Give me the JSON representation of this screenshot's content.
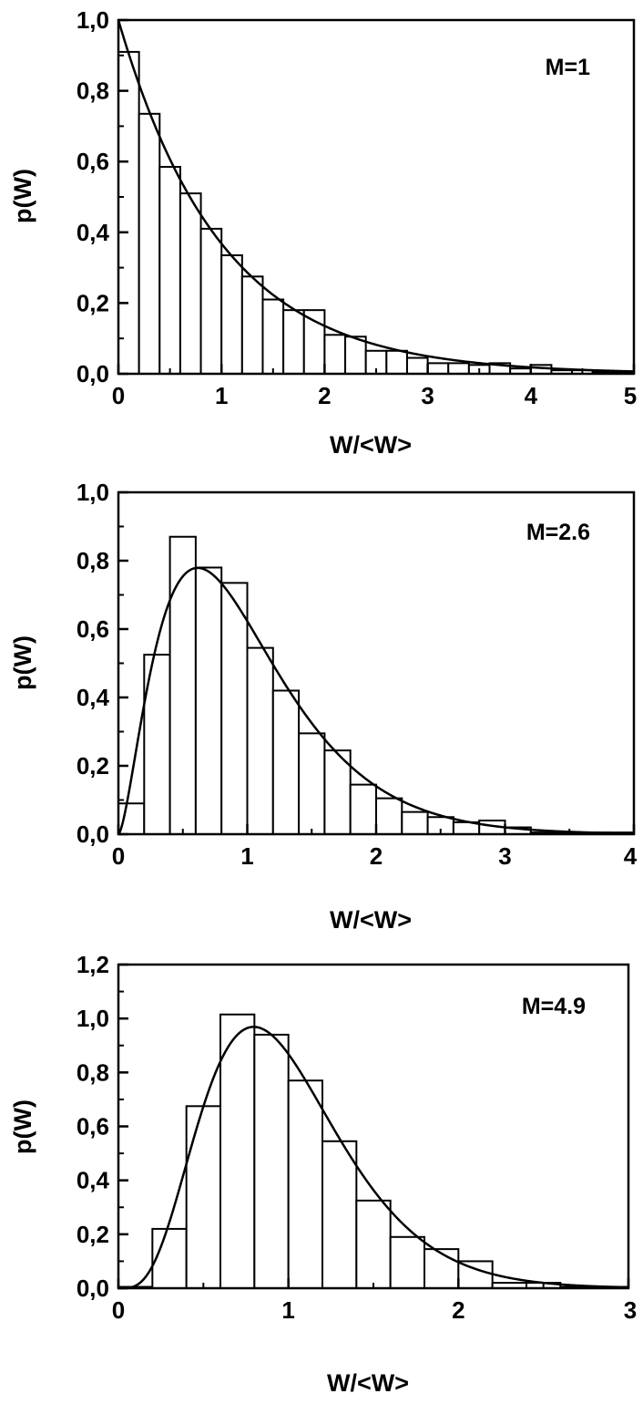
{
  "figure": {
    "colors": {
      "stroke": "#000000",
      "bar_fill": "#ffffff",
      "background": "#ffffff"
    }
  },
  "chart_data": [
    {
      "type": "bar",
      "annotation": "M=1",
      "xlabel": "W/<W>",
      "ylabel": "p(W)",
      "xlim": [
        0,
        5
      ],
      "ylim": [
        0,
        1.0
      ],
      "xticks": [
        0,
        1,
        2,
        3,
        4,
        5
      ],
      "xtick_labels": [
        "0",
        "1",
        "2",
        "3",
        "4",
        "5"
      ],
      "yticks": [
        0,
        0.2,
        0.4,
        0.6,
        0.8,
        1.0
      ],
      "ytick_labels": [
        "0,0",
        "0,2",
        "0,4",
        "0,6",
        "0,8",
        "1,0"
      ],
      "minor_x_step": 0.5,
      "minor_y_step": 0.1,
      "bin_width": 0.2,
      "bin_start": 0,
      "values": [
        0.91,
        0.735,
        0.585,
        0.51,
        0.41,
        0.335,
        0.275,
        0.21,
        0.18,
        0.18,
        0.11,
        0.105,
        0.065,
        0.065,
        0.045,
        0.03,
        0.03,
        0.025,
        0.03,
        0.015,
        0.025,
        0.01,
        0.01,
        0.005,
        0.005
      ],
      "curve": {
        "model": "gamma",
        "M": 1
      },
      "grid": false,
      "legend": "none"
    },
    {
      "type": "bar",
      "annotation": "M=2.6",
      "xlabel": "W/<W>",
      "ylabel": "p(W)",
      "xlim": [
        0,
        4
      ],
      "ylim": [
        0,
        1.0
      ],
      "xticks": [
        0,
        1,
        2,
        3,
        4
      ],
      "xtick_labels": [
        "0",
        "1",
        "2",
        "3",
        "4"
      ],
      "yticks": [
        0,
        0.2,
        0.4,
        0.6,
        0.8,
        1.0
      ],
      "ytick_labels": [
        "0,0",
        "0,2",
        "0,4",
        "0,6",
        "0,8",
        "1,0"
      ],
      "minor_x_step": 0.5,
      "minor_y_step": 0.1,
      "bin_width": 0.2,
      "bin_start": 0,
      "values": [
        0.09,
        0.525,
        0.87,
        0.78,
        0.735,
        0.545,
        0.42,
        0.295,
        0.245,
        0.145,
        0.105,
        0.065,
        0.05,
        0.035,
        0.04,
        0.02,
        0.005,
        0.005,
        0.005,
        0.005
      ],
      "curve": {
        "model": "gamma",
        "M": 2.6
      },
      "grid": false,
      "legend": "none"
    },
    {
      "type": "bar",
      "annotation": "M=4.9",
      "xlabel": "W/<W>",
      "ylabel": "p(W)",
      "xlim": [
        0,
        3
      ],
      "ylim": [
        0,
        1.2
      ],
      "xticks": [
        0,
        1,
        2,
        3
      ],
      "xtick_labels": [
        "0",
        "1",
        "2",
        "3"
      ],
      "yticks": [
        0,
        0.2,
        0.4,
        0.6,
        0.8,
        1.0,
        1.2
      ],
      "ytick_labels": [
        "0,0",
        "0,2",
        "0,4",
        "0,6",
        "0,8",
        "1,0",
        "1,2"
      ],
      "minor_x_step": 0.5,
      "minor_y_step": 0.1,
      "bin_width": 0.2,
      "bin_start": 0,
      "values": [
        0.005,
        0.22,
        0.675,
        1.015,
        0.94,
        0.77,
        0.545,
        0.325,
        0.19,
        0.145,
        0.1,
        0.02,
        0.02,
        0.005,
        0.005
      ],
      "curve": {
        "model": "gamma",
        "M": 4.9
      },
      "grid": false,
      "legend": "none"
    }
  ]
}
